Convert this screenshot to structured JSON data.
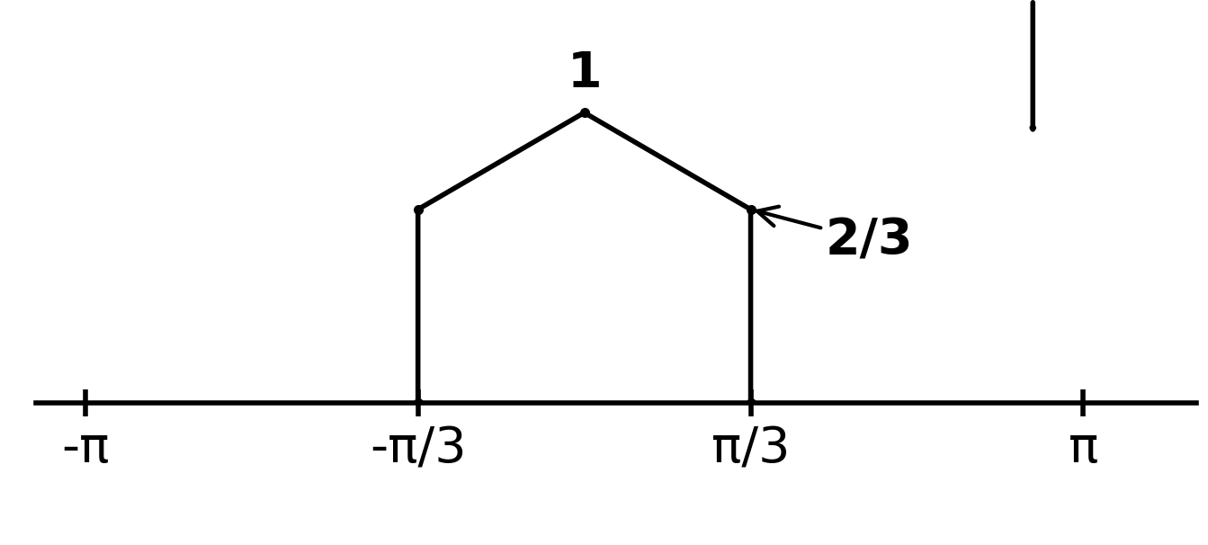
{
  "chart_data": {
    "type": "line",
    "x": [
      -1.0472,
      -1.0472,
      0,
      1.0472,
      1.0472
    ],
    "values": [
      0,
      0.667,
      1,
      0.667,
      0
    ],
    "color": "#000000",
    "marker": "o",
    "line_style": "solid",
    "xlim": [
      -3.45,
      3.85
    ],
    "xticks": [
      {
        "value": -3.14159,
        "label": "-π"
      },
      {
        "value": -1.0472,
        "label": "-π/3"
      },
      {
        "value": 1.0472,
        "label": "π/3"
      },
      {
        "value": 3.14159,
        "label": "π"
      }
    ],
    "ylim": [
      0,
      1.35
    ],
    "tick_labels": "x",
    "grid": false,
    "annotations": [
      {
        "text": "1",
        "x": 0,
        "y": 1
      },
      {
        "text": "2/3",
        "x": 1.0472,
        "y": 0.667
      }
    ]
  }
}
